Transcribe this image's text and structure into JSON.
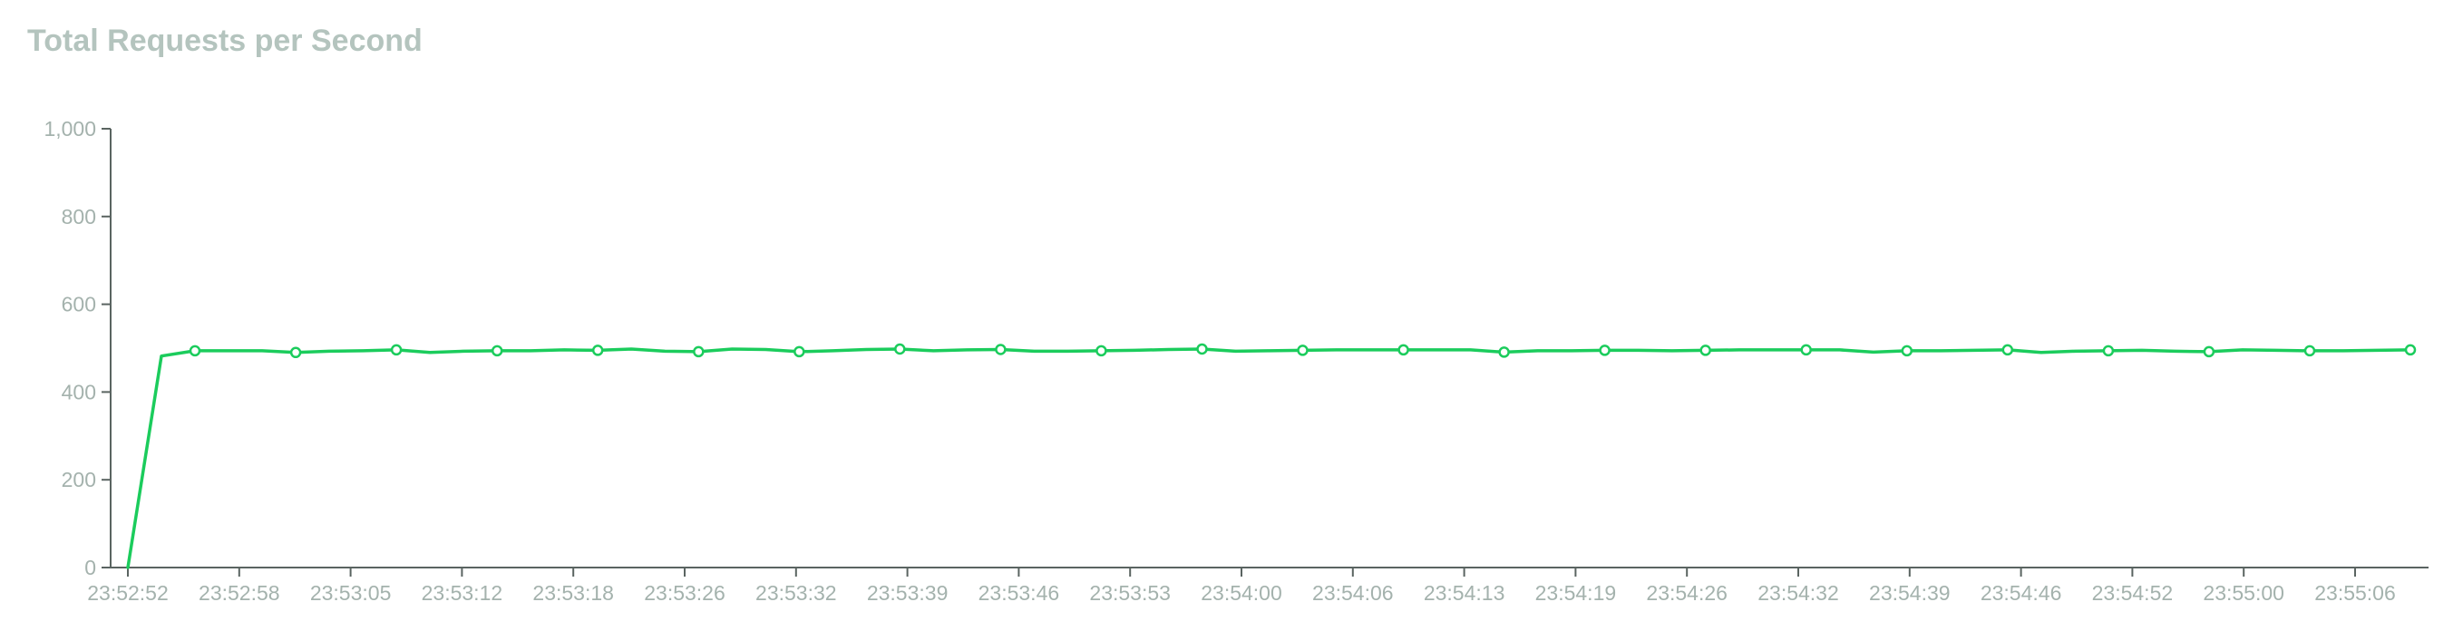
{
  "chart_data": {
    "type": "line",
    "title": "Total Requests per Second",
    "xlabel": "",
    "ylabel": "",
    "ylim": [
      0,
      1000
    ],
    "y_ticks": [
      0,
      200,
      400,
      600,
      800,
      1000
    ],
    "y_tick_labels": [
      "0",
      "200",
      "400",
      "600",
      "800",
      "1,000"
    ],
    "x_tick_labels": [
      "23:52:52",
      "23:52:58",
      "23:53:05",
      "23:53:12",
      "23:53:18",
      "23:53:26",
      "23:53:32",
      "23:53:39",
      "23:53:46",
      "23:53:53",
      "23:54:00",
      "23:54:06",
      "23:54:13",
      "23:54:19",
      "23:54:26",
      "23:54:32",
      "23:54:39",
      "23:54:46",
      "23:54:52",
      "23:55:00",
      "23:55:06"
    ],
    "grid": false,
    "legend": "none",
    "series": [
      {
        "color": "#1bcc5c",
        "values": [
          0,
          482,
          494,
          494,
          494,
          490,
          493,
          494,
          496,
          490,
          493,
          494,
          494,
          496,
          495,
          498,
          493,
          492,
          498,
          497,
          492,
          494,
          497,
          498,
          494,
          496,
          497,
          493,
          493,
          494,
          495,
          497,
          498,
          493,
          494,
          495,
          496,
          496,
          496,
          496,
          496,
          491,
          494,
          494,
          495,
          495,
          494,
          495,
          496,
          496,
          496,
          496,
          491,
          494,
          494,
          495,
          496,
          490,
          493,
          494,
          495,
          493,
          492,
          496,
          495,
          494,
          494,
          495,
          496
        ],
        "marker_every": 3,
        "marker_offset": 2
      }
    ]
  }
}
